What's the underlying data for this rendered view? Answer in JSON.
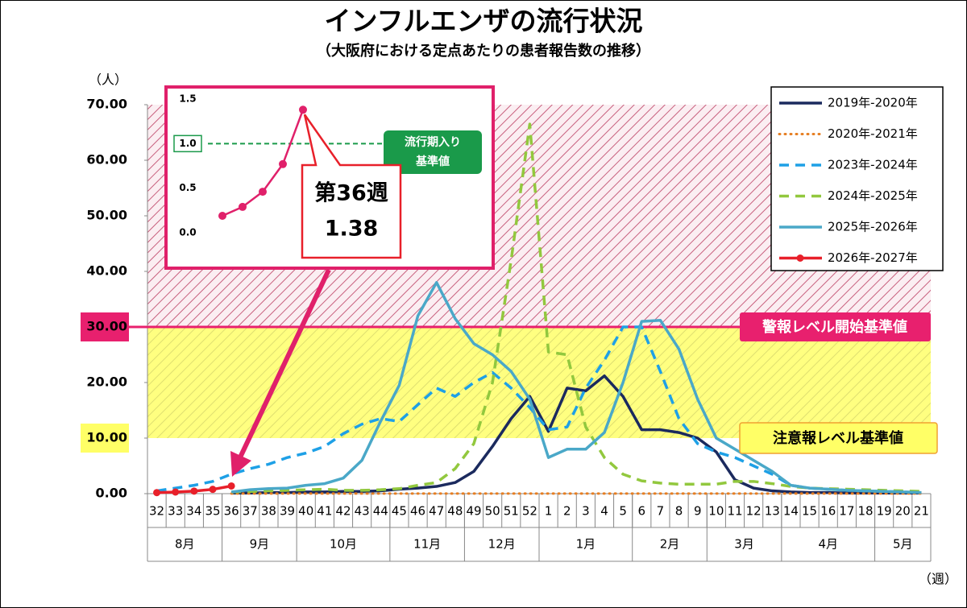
{
  "chart_data": {
    "type": "line",
    "title": "インフルエンザの流行状況",
    "subtitle": "（大阪府における定点あたりの患者報告数の推移）",
    "y_label": "（人）",
    "x_label": "（週）",
    "categories": [
      "32",
      "33",
      "34",
      "35",
      "36",
      "37",
      "38",
      "39",
      "40",
      "41",
      "42",
      "43",
      "44",
      "45",
      "46",
      "47",
      "48",
      "49",
      "50",
      "51",
      "52",
      "1",
      "2",
      "3",
      "4",
      "5",
      "6",
      "7",
      "8",
      "9",
      "10",
      "11",
      "12",
      "13",
      "14",
      "15",
      "16",
      "17",
      "18",
      "19",
      "20",
      "21"
    ],
    "months": [
      {
        "label": "8月",
        "from": "32",
        "to": "35"
      },
      {
        "label": "9月",
        "from": "36",
        "to": "39"
      },
      {
        "label": "10月",
        "from": "40",
        "to": "44"
      },
      {
        "label": "11月",
        "from": "45",
        "to": "48"
      },
      {
        "label": "12月",
        "from": "49",
        "to": "52"
      },
      {
        "label": "1月",
        "from": "1",
        "to": "5"
      },
      {
        "label": "2月",
        "from": "6",
        "to": "9"
      },
      {
        "label": "3月",
        "from": "10",
        "to": "13"
      },
      {
        "label": "4月",
        "from": "14",
        "to": "18"
      },
      {
        "label": "5月",
        "from": "19",
        "to": "21"
      }
    ],
    "ylim": [
      0,
      70
    ],
    "yticks": [
      {
        "value": 0,
        "label": "0.00"
      },
      {
        "value": 10,
        "label": "10.00"
      },
      {
        "value": 20,
        "label": "20.00"
      },
      {
        "value": 30,
        "label": "30.00"
      },
      {
        "value": 40,
        "label": "40.00"
      },
      {
        "value": 50,
        "label": "50.00"
      },
      {
        "value": 60,
        "label": "60.00"
      },
      {
        "value": 70,
        "label": "70.00"
      }
    ],
    "grid": false,
    "thresholds": [
      {
        "value": 30,
        "label": "警報レベル開始基準値",
        "color": "#e8206e"
      },
      {
        "value": 10,
        "label": "注意報レベル基準値",
        "color": "#ffff66"
      }
    ],
    "series": [
      {
        "name": "2019年-2020年",
        "color": "#1b2a5e",
        "dash": "solid",
        "values": [
          null,
          null,
          null,
          null,
          0.1,
          0.1,
          0.2,
          0.2,
          0.3,
          0.3,
          0.4,
          0.4,
          0.5,
          0.8,
          1.0,
          1.3,
          2.0,
          4.0,
          8.5,
          13.5,
          17.5,
          11.2,
          19.0,
          18.5,
          21.2,
          17.5,
          11.5,
          11.5,
          11.0,
          10.0,
          7.5,
          2.5,
          1.0,
          0.5,
          0.3,
          0.2,
          0.2,
          0.1,
          0.1,
          0.1,
          0.1,
          0.1
        ]
      },
      {
        "name": "2020年-2021年",
        "color": "#e67e22",
        "dash": "dotted",
        "values": [
          null,
          null,
          null,
          null,
          0.01,
          0.01,
          0.01,
          0.01,
          0.01,
          0.01,
          0.01,
          0.01,
          0.01,
          0.01,
          0.01,
          0.01,
          0.01,
          0.01,
          0.01,
          0.01,
          0.01,
          0.01,
          0.01,
          0.01,
          0.01,
          0.01,
          0.01,
          0.01,
          0.01,
          0.01,
          0.01,
          0.01,
          0.01,
          0.01,
          0.01,
          0.01,
          0.01,
          0.01,
          0.01,
          0.01,
          0.01,
          0.01
        ]
      },
      {
        "name": "2023年-2024年",
        "color": "#1ea0e6",
        "dash": "dashed",
        "values": [
          0.5,
          1.0,
          1.5,
          2.2,
          3.5,
          4.5,
          5.3,
          6.5,
          7.3,
          8.5,
          10.8,
          12.5,
          13.5,
          13.0,
          16.0,
          19.0,
          17.5,
          20.0,
          21.8,
          19.0,
          15.5,
          11.5,
          12.0,
          19.0,
          24.0,
          30.0,
          30.0,
          22.0,
          13.5,
          9.0,
          7.5,
          6.5,
          5.0,
          3.5,
          1.5,
          1.0,
          0.8,
          0.6,
          0.5,
          0.4,
          0.3,
          0.2
        ]
      },
      {
        "name": "2024年-2025年",
        "color": "#92c83e",
        "dash": "dashed",
        "values": [
          null,
          null,
          null,
          null,
          0.3,
          0.4,
          0.5,
          0.6,
          0.7,
          0.8,
          0.6,
          0.6,
          0.7,
          0.9,
          1.5,
          2.0,
          4.5,
          9.0,
          20.0,
          42.0,
          66.5,
          25.5,
          25.0,
          12.0,
          6.5,
          3.5,
          2.3,
          1.9,
          1.7,
          1.7,
          1.7,
          2.2,
          2.2,
          1.8,
          1.3,
          1.0,
          0.9,
          0.8,
          0.7,
          0.6,
          0.5,
          0.4
        ]
      },
      {
        "name": "2025年-2026年",
        "color": "#4aa8c8",
        "dash": "solid",
        "values": [
          null,
          null,
          null,
          null,
          0.3,
          0.7,
          0.9,
          1.0,
          1.5,
          1.8,
          2.8,
          6.0,
          13.0,
          19.5,
          32.0,
          38.0,
          31.5,
          27.0,
          25.0,
          22.0,
          17.0,
          6.5,
          8.0,
          8.0,
          11.0,
          20.0,
          31.0,
          31.2,
          26.0,
          17.0,
          10.0,
          8.0,
          6.0,
          4.0,
          1.5,
          1.0,
          0.8,
          0.6,
          0.5,
          0.4,
          0.3,
          0.2
        ]
      },
      {
        "name": "2026年-2027年",
        "color": "#e8202a",
        "dash": "solid",
        "marker": true,
        "values": [
          0.19,
          0.29,
          0.46,
          0.77,
          1.38,
          null,
          null,
          null,
          null,
          null,
          null,
          null,
          null,
          null,
          null,
          null,
          null,
          null,
          null,
          null,
          null,
          null,
          null,
          null,
          null,
          null,
          null,
          null,
          null,
          null,
          null,
          null,
          null,
          null,
          null,
          null,
          null,
          null,
          null,
          null,
          null,
          null
        ]
      }
    ],
    "inset": {
      "ylim": [
        0,
        1.5
      ],
      "yticks": [
        {
          "value": 0,
          "label": "0.0"
        },
        0.5,
        {
          "value": 1,
          "label": "1.0"
        },
        1.5
      ],
      "threshold": {
        "value": 1,
        "label_lines": [
          "流行期入り",
          "基準値"
        ],
        "color": "#1a9a4a"
      },
      "callout": "第36週"
    }
  }
}
